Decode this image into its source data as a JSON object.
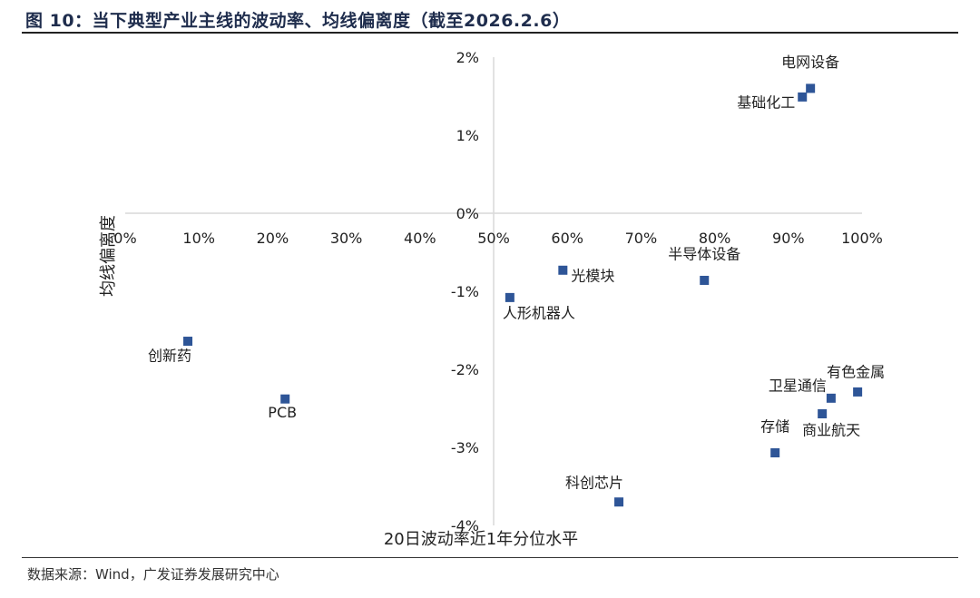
{
  "title": "图 10：当下典型产业主线的波动率、均线偏离度（截至2026.2.6）",
  "source": "数据来源：Wind，广发证券发展研究中心",
  "chart_data": {
    "type": "scatter",
    "title": "",
    "xlabel": "20日波动率近1年分位水平",
    "ylabel": "均线偏离度",
    "xlim": [
      0,
      100
    ],
    "ylim": [
      -4,
      2
    ],
    "x_unit": "%",
    "y_unit": "%",
    "xticks": [
      "0%",
      "10%",
      "20%",
      "30%",
      "40%",
      "50%",
      "60%",
      "70%",
      "80%",
      "90%",
      "100%"
    ],
    "yticks": [
      "2%",
      "1%",
      "0%",
      "-1%",
      "-2%",
      "-3%",
      "-4%"
    ],
    "grid": false,
    "marker_color": "#2e5597",
    "points": [
      {
        "label": "电网设备",
        "x": 93.0,
        "y": 1.6
      },
      {
        "label": "基础化工",
        "x": 91.9,
        "y": 1.49
      },
      {
        "label": "半导体设备",
        "x": 78.6,
        "y": -0.86
      },
      {
        "label": "光模块",
        "x": 59.4,
        "y": -0.73
      },
      {
        "label": "人形机器人",
        "x": 52.2,
        "y": -1.08
      },
      {
        "label": "创新药",
        "x": 8.5,
        "y": -1.64
      },
      {
        "label": "PCB",
        "x": 21.7,
        "y": -2.38
      },
      {
        "label": "有色金属",
        "x": 99.4,
        "y": -2.29
      },
      {
        "label": "卫星通信",
        "x": 95.8,
        "y": -2.37
      },
      {
        "label": "商业航天",
        "x": 94.6,
        "y": -2.57
      },
      {
        "label": "存储",
        "x": 88.2,
        "y": -3.07
      },
      {
        "label": "科创芯片",
        "x": 67.0,
        "y": -3.7
      }
    ]
  }
}
